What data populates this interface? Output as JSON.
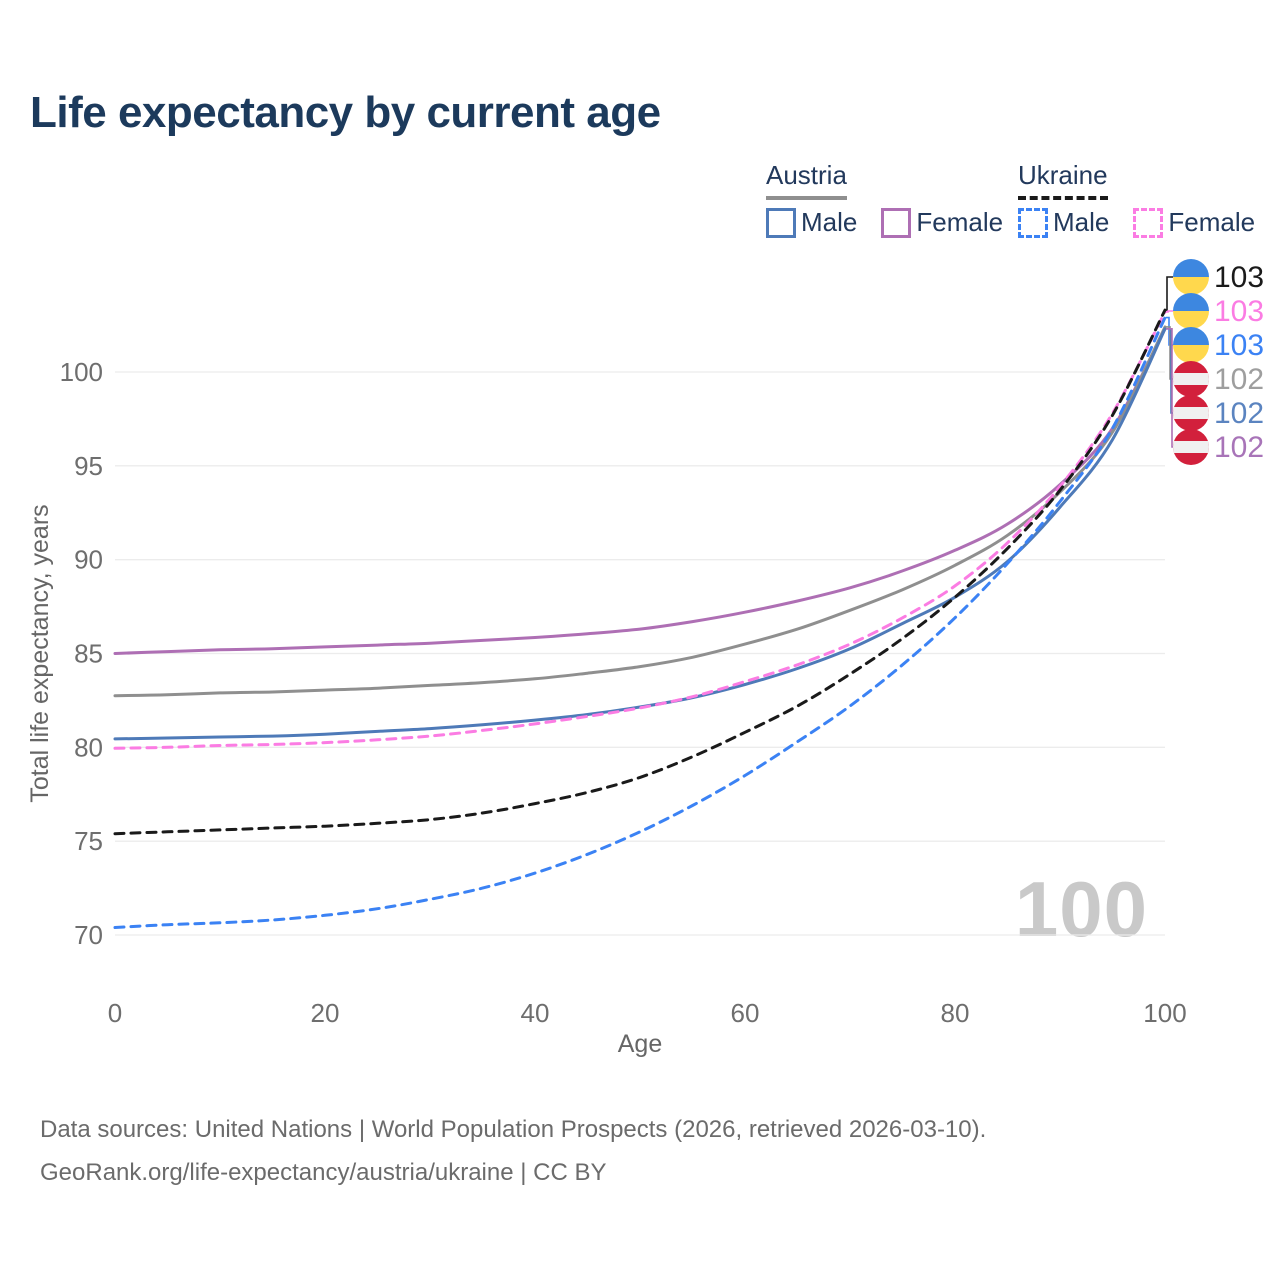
{
  "page": {
    "title": "Life expectancy by current age"
  },
  "legend": {
    "groups": [
      {
        "label": "Austria",
        "underline_color": "#8f8f8f",
        "underline_style": "solid",
        "items": [
          {
            "label": "Male",
            "swatch_color": "#4e7ab8",
            "swatch_style": "solid"
          },
          {
            "label": "Female",
            "swatch_color": "#ae6fb4",
            "swatch_style": "solid"
          }
        ]
      },
      {
        "label": "Ukraine",
        "underline_color": "#1a1a1a",
        "underline_style": "dashed",
        "items": [
          {
            "label": "Male",
            "swatch_color": "#3b82f4",
            "swatch_style": "dashed"
          },
          {
            "label": "Female",
            "swatch_color": "#fb7ce3",
            "swatch_style": "dashed"
          }
        ]
      }
    ]
  },
  "watermark": "100",
  "chart_data": {
    "type": "line",
    "title": "Life expectancy by current age",
    "xlabel": "Age",
    "ylabel": "Total life expectancy, years",
    "xlim": [
      0,
      100
    ],
    "x_ticks": [
      0,
      20,
      40,
      60,
      80,
      100
    ],
    "y_ticks": [
      70,
      75,
      80,
      85,
      90,
      95,
      100
    ],
    "grid": true,
    "legend_position": "top-right",
    "x": [
      0,
      5,
      10,
      15,
      20,
      25,
      30,
      35,
      40,
      45,
      50,
      55,
      60,
      65,
      70,
      75,
      80,
      85,
      90,
      95,
      100
    ],
    "series": [
      {
        "id": "austria-female",
        "name": "Austria Female",
        "color": "#ae6fb4",
        "dashed": false,
        "values": [
          85.0,
          85.1,
          85.2,
          85.25,
          85.35,
          85.45,
          85.55,
          85.7,
          85.85,
          86.05,
          86.3,
          86.7,
          87.2,
          87.8,
          88.5,
          89.4,
          90.5,
          91.9,
          94.0,
          97.0,
          102.3
        ]
      },
      {
        "id": "austria-total",
        "name": "Austria",
        "color": "#8f8f8f",
        "dashed": false,
        "values": [
          82.75,
          82.8,
          82.9,
          82.95,
          83.05,
          83.15,
          83.3,
          83.45,
          83.65,
          83.95,
          84.3,
          84.8,
          85.5,
          86.3,
          87.3,
          88.4,
          89.7,
          91.3,
          93.6,
          96.8,
          102.4
        ]
      },
      {
        "id": "austria-male",
        "name": "Austria Male",
        "color": "#4e7ab8",
        "dashed": false,
        "values": [
          80.45,
          80.5,
          80.55,
          80.6,
          80.7,
          80.85,
          81.0,
          81.2,
          81.45,
          81.75,
          82.15,
          82.65,
          83.35,
          84.2,
          85.25,
          86.6,
          88.0,
          89.9,
          92.8,
          96.4,
          102.3
        ]
      },
      {
        "id": "ukraine-female",
        "name": "Ukraine Female",
        "color": "#fb7ce3",
        "dashed": true,
        "values": [
          79.95,
          80.0,
          80.1,
          80.15,
          80.25,
          80.4,
          80.6,
          80.9,
          81.25,
          81.65,
          82.1,
          82.7,
          83.5,
          84.4,
          85.5,
          86.9,
          88.6,
          90.9,
          93.9,
          97.8,
          103.2
        ]
      },
      {
        "id": "ukraine-male",
        "name": "Ukraine Male",
        "color": "#3b82f4",
        "dashed": true,
        "values": [
          70.4,
          70.55,
          70.65,
          70.8,
          71.05,
          71.4,
          71.9,
          72.5,
          73.3,
          74.3,
          75.5,
          76.9,
          78.5,
          80.3,
          82.2,
          84.4,
          86.9,
          89.8,
          93.1,
          97.0,
          102.9
        ]
      },
      {
        "id": "ukraine-total",
        "name": "Ukraine",
        "color": "#1a1a1a",
        "dashed": true,
        "values": [
          75.4,
          75.5,
          75.6,
          75.7,
          75.8,
          75.95,
          76.15,
          76.5,
          77.0,
          77.6,
          78.4,
          79.5,
          80.8,
          82.2,
          83.9,
          85.8,
          88.0,
          90.6,
          93.7,
          97.7,
          103.3
        ]
      }
    ],
    "end_labels": [
      {
        "series": "ukraine-total",
        "flag": "ua",
        "value": "103",
        "color": "#1a1a1a"
      },
      {
        "series": "ukraine-female",
        "flag": "ua",
        "value": "103",
        "color": "#fb7ce3"
      },
      {
        "series": "ukraine-male",
        "flag": "ua",
        "value": "103",
        "color": "#3b82f4"
      },
      {
        "series": "austria-total",
        "flag": "at",
        "value": "102",
        "color": "#9e9e9e"
      },
      {
        "series": "austria-male",
        "flag": "at",
        "value": "102",
        "color": "#5b84c0"
      },
      {
        "series": "austria-female",
        "flag": "at",
        "value": "102",
        "color": "#a874b8"
      }
    ],
    "flag_colors": {
      "ua": {
        "top": "#3d87e0",
        "bottom": "#ffd84d"
      },
      "at": {
        "band": "#d2203c",
        "middle": "#f0f0f0"
      }
    }
  },
  "footer": {
    "line1": "Data sources: United Nations | World Population Prospects (2026, retrieved 2026-03-10).",
    "line2": "GeoRank.org/life-expectancy/austria/ukraine | CC BY"
  }
}
